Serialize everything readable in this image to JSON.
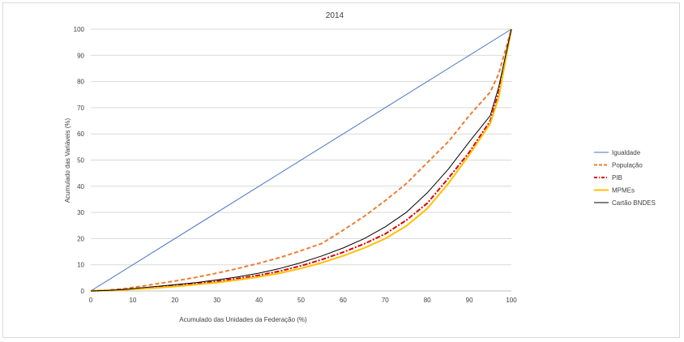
{
  "chart_data": {
    "type": "line",
    "title": "2014",
    "xlabel": "Acumulado das Unidades da Federação (%)",
    "ylabel": "Acumulado das Variáveis (%)",
    "xlim": [
      0,
      100
    ],
    "ylim": [
      0,
      100
    ],
    "xticks": [
      "0",
      "10",
      "20",
      "30",
      "40",
      "50",
      "60",
      "70",
      "80",
      "90",
      "100"
    ],
    "yticks": [
      "0",
      "10",
      "20",
      "30",
      "40",
      "50",
      "60",
      "70",
      "80",
      "90",
      "100"
    ],
    "grid": true,
    "legend_position": "right",
    "series": [
      {
        "name": "Igualdade",
        "color": "#4472c4",
        "dash": "solid",
        "x": [
          0,
          100
        ],
        "y": [
          0,
          100
        ]
      },
      {
        "name": "População",
        "color": "#ed7d31",
        "dash": "dashed",
        "x": [
          0,
          4,
          8,
          12,
          16,
          20,
          25,
          30,
          35,
          40,
          45,
          50,
          55,
          60,
          65,
          70,
          75,
          80,
          85,
          90,
          95,
          97,
          100
        ],
        "y": [
          0,
          0.3,
          0.9,
          1.8,
          2.8,
          3.8,
          5.2,
          6.8,
          8.6,
          10.6,
          12.8,
          15.4,
          18.2,
          23.2,
          28.5,
          34.5,
          41.0,
          49.0,
          57.0,
          67.0,
          76.0,
          83.0,
          100
        ]
      },
      {
        "name": "PIB",
        "color": "#e00000",
        "dash": "dashdot",
        "x": [
          0,
          4,
          8,
          12,
          16,
          20,
          25,
          30,
          35,
          40,
          45,
          50,
          55,
          60,
          65,
          70,
          75,
          80,
          85,
          90,
          95,
          97,
          100
        ],
        "y": [
          0,
          0.2,
          0.5,
          1.0,
          1.5,
          2.0,
          2.8,
          3.7,
          4.8,
          6.0,
          7.6,
          9.6,
          12.0,
          14.8,
          18.0,
          21.8,
          27.0,
          33.5,
          43.0,
          53.0,
          65.0,
          76.0,
          100
        ]
      },
      {
        "name": "MPMEs",
        "color": "#ffc000",
        "dash": "solid",
        "x": [
          0,
          4,
          8,
          12,
          16,
          20,
          25,
          30,
          35,
          40,
          45,
          50,
          55,
          60,
          65,
          70,
          75,
          80,
          85,
          90,
          95,
          97,
          100
        ],
        "y": [
          0,
          0.2,
          0.4,
          0.8,
          1.2,
          1.7,
          2.4,
          3.2,
          4.2,
          5.4,
          6.8,
          8.6,
          10.8,
          13.4,
          16.4,
          20.0,
          24.8,
          31.5,
          41.0,
          52.0,
          64.0,
          74.0,
          100
        ]
      },
      {
        "name": "Cartão BNDES",
        "color": "#000000",
        "dash": "solid",
        "x": [
          0,
          4,
          8,
          12,
          16,
          20,
          25,
          30,
          35,
          40,
          45,
          50,
          55,
          60,
          65,
          70,
          75,
          80,
          85,
          90,
          95,
          97,
          100
        ],
        "y": [
          0,
          0.2,
          0.6,
          1.2,
          1.8,
          2.4,
          3.2,
          4.2,
          5.4,
          6.8,
          8.6,
          10.8,
          13.4,
          16.4,
          20.0,
          24.5,
          30.0,
          37.5,
          46.5,
          57.0,
          67.0,
          78.0,
          100
        ]
      }
    ]
  }
}
